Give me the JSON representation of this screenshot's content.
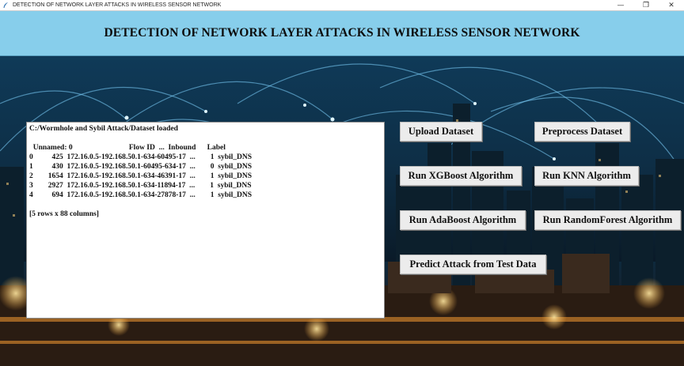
{
  "window": {
    "title": "DETECTION OF NETWORK LAYER ATTACKS IN WIRELESS SENSOR NETWORK",
    "minimize_glyph": "—",
    "maximize_glyph": "❐",
    "close_glyph": "✕"
  },
  "header": {
    "title": "DETECTION OF NETWORK LAYER ATTACKS IN WIRELESS SENSOR NETWORK",
    "background": "#87ceeb"
  },
  "output": {
    "status": "C:/Wormhole and Sybil Attack/Dataset loaded",
    "table_header": "  Unnamed: 0                              Flow ID  ...  Inbound      Label",
    "rows": [
      "0          425  172.16.0.5-192.168.50.1-634-60495-17  ...        1  sybil_DNS",
      "1          430  172.16.0.5-192.168.50.1-60495-634-17  ...        0  sybil_DNS",
      "2        1654  172.16.0.5-192.168.50.1-634-46391-17  ...        1  sybil_DNS",
      "3        2927  172.16.0.5-192.168.50.1-634-11894-17  ...        1  sybil_DNS",
      "4          694  172.16.0.5-192.168.50.1-634-27878-17  ...        1  sybil_DNS"
    ],
    "summary": "[5 rows x 88 columns]"
  },
  "buttons": {
    "upload": "Upload  Dataset",
    "preprocess": "Preprocess Dataset",
    "xgboost": "Run XGBoost Algorithm",
    "knn": "Run KNN Algorithm",
    "adaboost": "Run AdaBoost Algorithm",
    "randomforest": "Run RandomForest Algorithm",
    "predict": "Predict Attack from Test Data"
  }
}
